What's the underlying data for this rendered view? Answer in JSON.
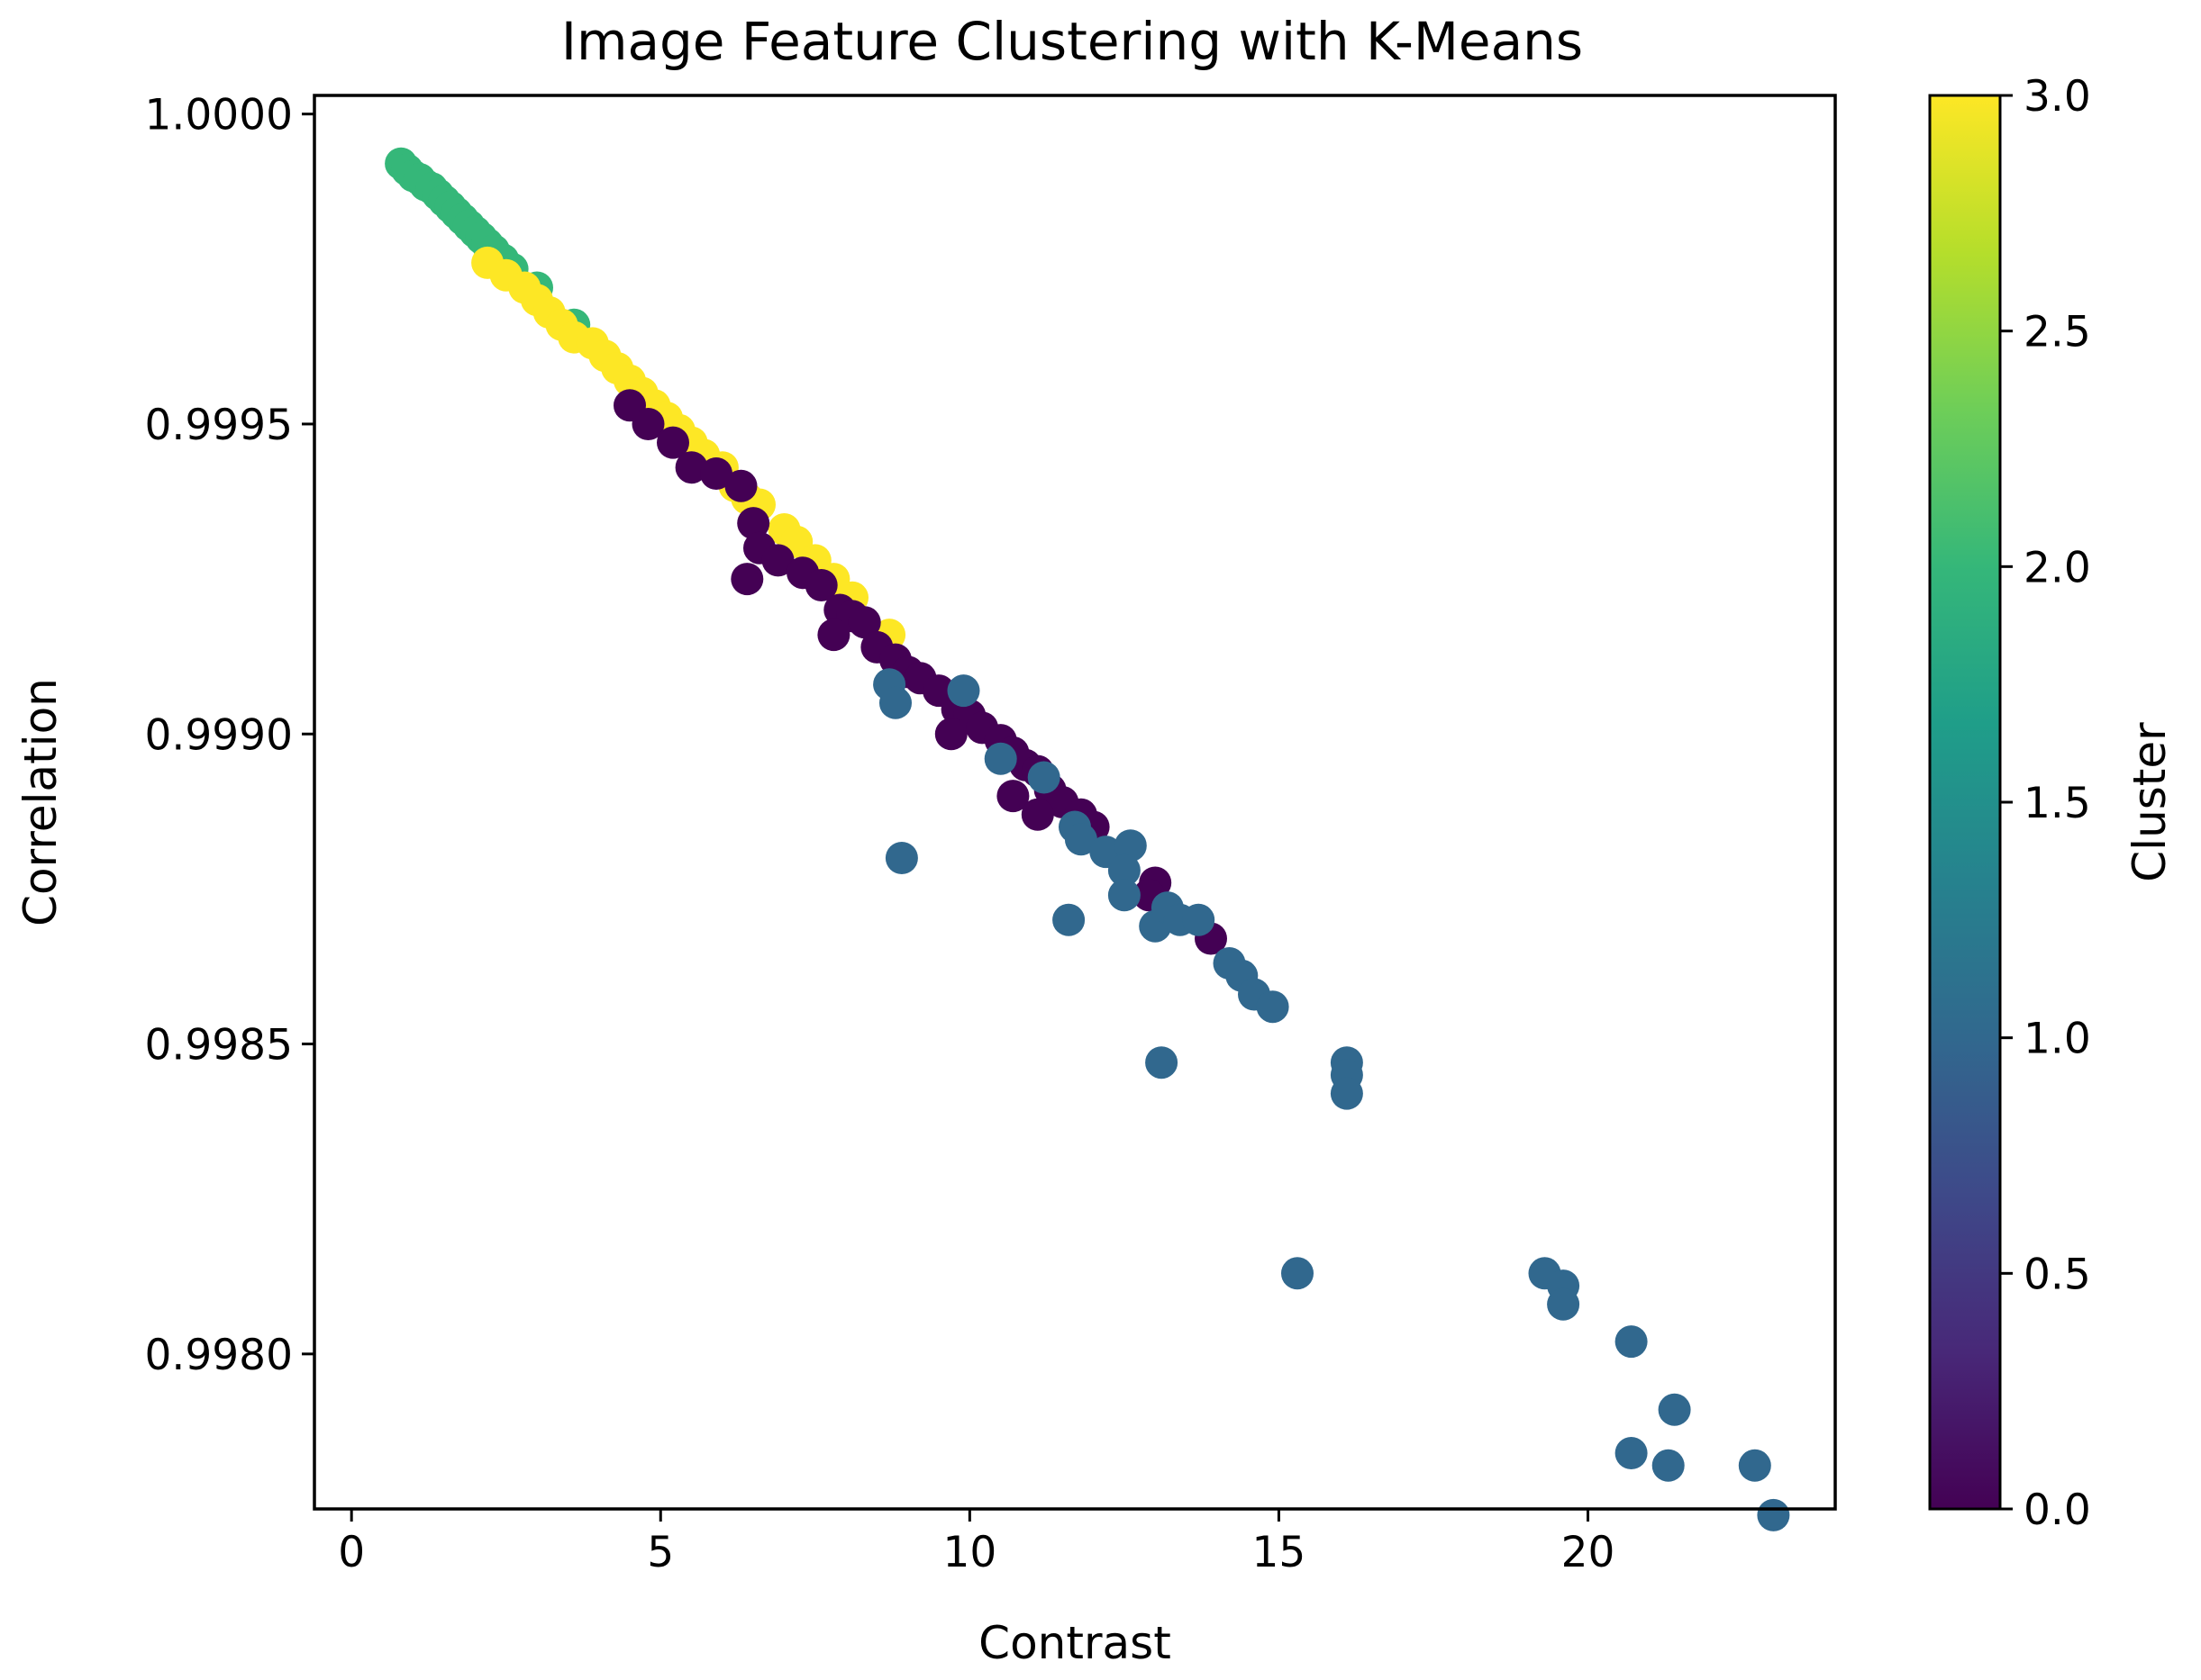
{
  "chart_data": {
    "type": "scatter",
    "title": "Image Feature Clustering with K-Means",
    "xlabel": "Contrast",
    "ylabel": "Correlation",
    "xlim": [
      -0.6,
      24.0
    ],
    "ylim": [
      0.99775,
      1.00003
    ],
    "x_ticks": [
      {
        "value": 0,
        "label": "0"
      },
      {
        "value": 5,
        "label": "5"
      },
      {
        "value": 10,
        "label": "10"
      },
      {
        "value": 15,
        "label": "15"
      },
      {
        "value": 20,
        "label": "20"
      }
    ],
    "y_ticks": [
      {
        "value": 0.998,
        "label": "0.9980"
      },
      {
        "value": 0.9985,
        "label": "0.9985"
      },
      {
        "value": 0.999,
        "label": "0.9990"
      },
      {
        "value": 0.9995,
        "label": "0.9995"
      },
      {
        "value": 1.0,
        "label": "1.0000"
      }
    ],
    "grid": false,
    "colorbar": {
      "label": "Cluster",
      "colormap": "viridis",
      "range": [
        0.0,
        3.0
      ],
      "ticks": [
        {
          "value": 0.0,
          "label": "0.0"
        },
        {
          "value": 0.5,
          "label": "0.5"
        },
        {
          "value": 1.0,
          "label": "1.0"
        },
        {
          "value": 1.5,
          "label": "1.5"
        },
        {
          "value": 2.0,
          "label": "2.0"
        },
        {
          "value": 2.5,
          "label": "2.5"
        },
        {
          "value": 3.0,
          "label": "3.0"
        }
      ],
      "stops": [
        "#440154",
        "#482878",
        "#3e4989",
        "#31688e",
        "#26828e",
        "#1f9e89",
        "#35b779",
        "#6ece58",
        "#b5de2b",
        "#fde725"
      ]
    },
    "cluster_colors": {
      "0": "#440154",
      "1": "#31688e",
      "2": "#35b779",
      "3": "#fde725"
    },
    "points": [
      {
        "x": 0.8,
        "y": 0.99992,
        "c": 2
      },
      {
        "x": 0.9,
        "y": 0.99991,
        "c": 2
      },
      {
        "x": 1.0,
        "y": 0.9999,
        "c": 2
      },
      {
        "x": 1.1,
        "y": 0.999895,
        "c": 2
      },
      {
        "x": 1.2,
        "y": 0.999885,
        "c": 2
      },
      {
        "x": 1.3,
        "y": 0.99988,
        "c": 2
      },
      {
        "x": 1.4,
        "y": 0.99987,
        "c": 2
      },
      {
        "x": 1.5,
        "y": 0.99986,
        "c": 2
      },
      {
        "x": 1.6,
        "y": 0.99985,
        "c": 2
      },
      {
        "x": 1.7,
        "y": 0.99984,
        "c": 2
      },
      {
        "x": 1.8,
        "y": 0.99983,
        "c": 2
      },
      {
        "x": 1.9,
        "y": 0.99982,
        "c": 2
      },
      {
        "x": 2.0,
        "y": 0.99981,
        "c": 2
      },
      {
        "x": 2.1,
        "y": 0.9998,
        "c": 2
      },
      {
        "x": 2.2,
        "y": 0.99979,
        "c": 2
      },
      {
        "x": 2.3,
        "y": 0.99978,
        "c": 2
      },
      {
        "x": 2.45,
        "y": 0.999765,
        "c": 2
      },
      {
        "x": 2.6,
        "y": 0.99975,
        "c": 2
      },
      {
        "x": 3.0,
        "y": 0.99972,
        "c": 2
      },
      {
        "x": 3.6,
        "y": 0.99966,
        "c": 2
      },
      {
        "x": 2.2,
        "y": 0.99976,
        "c": 3
      },
      {
        "x": 2.5,
        "y": 0.99974,
        "c": 3
      },
      {
        "x": 2.8,
        "y": 0.99972,
        "c": 3
      },
      {
        "x": 3.0,
        "y": 0.9997,
        "c": 3
      },
      {
        "x": 3.2,
        "y": 0.99968,
        "c": 3
      },
      {
        "x": 3.4,
        "y": 0.99966,
        "c": 3
      },
      {
        "x": 3.6,
        "y": 0.99964,
        "c": 3
      },
      {
        "x": 3.9,
        "y": 0.99963,
        "c": 3
      },
      {
        "x": 4.1,
        "y": 0.99961,
        "c": 3
      },
      {
        "x": 4.3,
        "y": 0.99959,
        "c": 3
      },
      {
        "x": 4.5,
        "y": 0.99957,
        "c": 3
      },
      {
        "x": 4.7,
        "y": 0.99955,
        "c": 3
      },
      {
        "x": 4.9,
        "y": 0.99953,
        "c": 3
      },
      {
        "x": 5.1,
        "y": 0.99951,
        "c": 3
      },
      {
        "x": 5.3,
        "y": 0.99949,
        "c": 3
      },
      {
        "x": 5.5,
        "y": 0.99947,
        "c": 3
      },
      {
        "x": 5.7,
        "y": 0.99945,
        "c": 3
      },
      {
        "x": 6.0,
        "y": 0.99943,
        "c": 3
      },
      {
        "x": 6.2,
        "y": 0.9994,
        "c": 3
      },
      {
        "x": 6.4,
        "y": 0.99938,
        "c": 3
      },
      {
        "x": 6.6,
        "y": 0.99937,
        "c": 3
      },
      {
        "x": 7.0,
        "y": 0.99933,
        "c": 3
      },
      {
        "x": 7.2,
        "y": 0.99931,
        "c": 3
      },
      {
        "x": 7.5,
        "y": 0.99928,
        "c": 3
      },
      {
        "x": 7.8,
        "y": 0.99925,
        "c": 3
      },
      {
        "x": 8.1,
        "y": 0.99922,
        "c": 3
      },
      {
        "x": 8.7,
        "y": 0.99916,
        "c": 3
      },
      {
        "x": 4.5,
        "y": 0.99953,
        "c": 0
      },
      {
        "x": 4.8,
        "y": 0.9995,
        "c": 0
      },
      {
        "x": 5.2,
        "y": 0.99947,
        "c": 0
      },
      {
        "x": 5.5,
        "y": 0.99943,
        "c": 0
      },
      {
        "x": 5.9,
        "y": 0.99942,
        "c": 0
      },
      {
        "x": 6.3,
        "y": 0.9994,
        "c": 0
      },
      {
        "x": 6.5,
        "y": 0.99934,
        "c": 0
      },
      {
        "x": 6.6,
        "y": 0.9993,
        "c": 0
      },
      {
        "x": 6.9,
        "y": 0.99928,
        "c": 0
      },
      {
        "x": 6.4,
        "y": 0.99925,
        "c": 0
      },
      {
        "x": 7.3,
        "y": 0.99926,
        "c": 0
      },
      {
        "x": 7.6,
        "y": 0.99924,
        "c": 0
      },
      {
        "x": 7.9,
        "y": 0.9992,
        "c": 0
      },
      {
        "x": 8.1,
        "y": 0.99919,
        "c": 0
      },
      {
        "x": 8.3,
        "y": 0.99918,
        "c": 0
      },
      {
        "x": 7.8,
        "y": 0.99916,
        "c": 0
      },
      {
        "x": 8.5,
        "y": 0.99914,
        "c": 0
      },
      {
        "x": 8.8,
        "y": 0.99912,
        "c": 0
      },
      {
        "x": 9.0,
        "y": 0.9991,
        "c": 0
      },
      {
        "x": 9.2,
        "y": 0.99909,
        "c": 0
      },
      {
        "x": 9.5,
        "y": 0.99907,
        "c": 0
      },
      {
        "x": 9.8,
        "y": 0.99904,
        "c": 0
      },
      {
        "x": 10.0,
        "y": 0.99903,
        "c": 0
      },
      {
        "x": 10.2,
        "y": 0.99901,
        "c": 0
      },
      {
        "x": 9.7,
        "y": 0.999,
        "c": 0
      },
      {
        "x": 10.5,
        "y": 0.99899,
        "c": 0
      },
      {
        "x": 10.7,
        "y": 0.99897,
        "c": 0
      },
      {
        "x": 10.9,
        "y": 0.99895,
        "c": 0
      },
      {
        "x": 11.1,
        "y": 0.99894,
        "c": 0
      },
      {
        "x": 11.3,
        "y": 0.99891,
        "c": 0
      },
      {
        "x": 10.7,
        "y": 0.9989,
        "c": 0
      },
      {
        "x": 11.5,
        "y": 0.99889,
        "c": 0
      },
      {
        "x": 11.1,
        "y": 0.99887,
        "c": 0
      },
      {
        "x": 11.8,
        "y": 0.99887,
        "c": 0
      },
      {
        "x": 12.0,
        "y": 0.99885,
        "c": 0
      },
      {
        "x": 13.0,
        "y": 0.99876,
        "c": 0
      },
      {
        "x": 12.9,
        "y": 0.99874,
        "c": 0
      },
      {
        "x": 13.9,
        "y": 0.99867,
        "c": 0
      },
      {
        "x": 8.7,
        "y": 0.99908,
        "c": 1
      },
      {
        "x": 8.8,
        "y": 0.99905,
        "c": 1
      },
      {
        "x": 9.9,
        "y": 0.99907,
        "c": 1
      },
      {
        "x": 10.5,
        "y": 0.99896,
        "c": 1
      },
      {
        "x": 11.2,
        "y": 0.99893,
        "c": 1
      },
      {
        "x": 11.7,
        "y": 0.99885,
        "c": 1
      },
      {
        "x": 11.8,
        "y": 0.99883,
        "c": 1
      },
      {
        "x": 12.2,
        "y": 0.99881,
        "c": 1
      },
      {
        "x": 12.6,
        "y": 0.99882,
        "c": 1
      },
      {
        "x": 12.5,
        "y": 0.99878,
        "c": 1
      },
      {
        "x": 12.5,
        "y": 0.99874,
        "c": 1
      },
      {
        "x": 8.9,
        "y": 0.9988,
        "c": 1
      },
      {
        "x": 11.6,
        "y": 0.9987,
        "c": 1
      },
      {
        "x": 13.0,
        "y": 0.99869,
        "c": 1
      },
      {
        "x": 13.2,
        "y": 0.99872,
        "c": 1
      },
      {
        "x": 13.4,
        "y": 0.9987,
        "c": 1
      },
      {
        "x": 13.7,
        "y": 0.9987,
        "c": 1
      },
      {
        "x": 14.2,
        "y": 0.99863,
        "c": 1
      },
      {
        "x": 14.4,
        "y": 0.99861,
        "c": 1
      },
      {
        "x": 14.6,
        "y": 0.99858,
        "c": 1
      },
      {
        "x": 14.9,
        "y": 0.99856,
        "c": 1
      },
      {
        "x": 13.1,
        "y": 0.99847,
        "c": 1
      },
      {
        "x": 16.1,
        "y": 0.99847,
        "c": 1
      },
      {
        "x": 16.1,
        "y": 0.99845,
        "c": 1
      },
      {
        "x": 16.1,
        "y": 0.99842,
        "c": 1
      },
      {
        "x": 15.3,
        "y": 0.99813,
        "c": 1
      },
      {
        "x": 19.3,
        "y": 0.99813,
        "c": 1
      },
      {
        "x": 19.6,
        "y": 0.99811,
        "c": 1
      },
      {
        "x": 19.6,
        "y": 0.99808,
        "c": 1
      },
      {
        "x": 20.7,
        "y": 0.99802,
        "c": 1
      },
      {
        "x": 21.4,
        "y": 0.99791,
        "c": 1
      },
      {
        "x": 20.7,
        "y": 0.99784,
        "c": 1
      },
      {
        "x": 21.3,
        "y": 0.99782,
        "c": 1
      },
      {
        "x": 22.7,
        "y": 0.99782,
        "c": 1
      },
      {
        "x": 23.0,
        "y": 0.99774,
        "c": 1
      }
    ]
  }
}
